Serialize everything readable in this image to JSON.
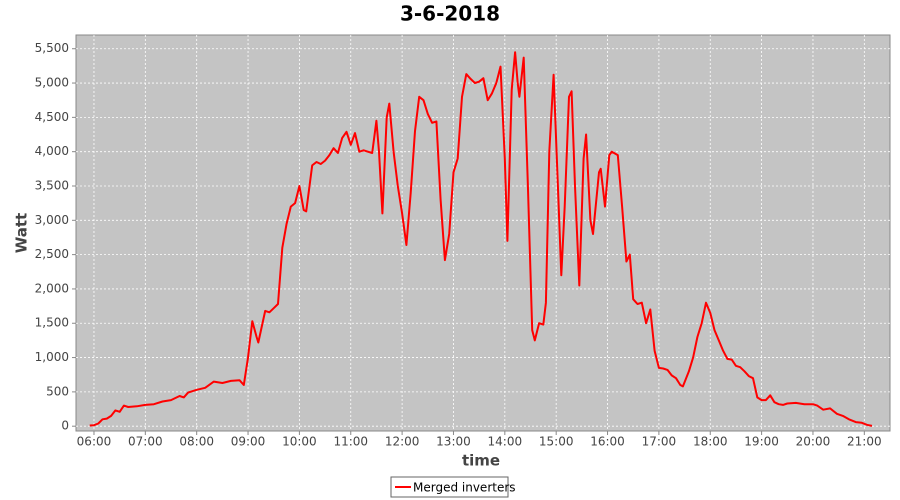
{
  "chart_data": {
    "type": "line",
    "title": "3-6-2018",
    "x_label": "time",
    "y_label": "Watt",
    "xlim": [
      "05:39",
      "21:30"
    ],
    "ylim": [
      -70,
      5700
    ],
    "xticks": [
      "06:00",
      "07:00",
      "08:00",
      "09:00",
      "10:00",
      "11:00",
      "12:00",
      "13:00",
      "14:00",
      "15:00",
      "16:00",
      "17:00",
      "18:00",
      "19:00",
      "20:00",
      "21:00"
    ],
    "yticks": [
      0,
      500,
      {
        "value": 1000,
        "label": "1,000"
      },
      {
        "value": 1500,
        "label": "1,500"
      },
      {
        "value": 2000,
        "label": "2,000"
      },
      {
        "value": 2500,
        "label": "2,500"
      },
      {
        "value": 3000,
        "label": "3,000"
      },
      {
        "value": 3500,
        "label": "3,500"
      },
      {
        "value": 4000,
        "label": "4,000"
      },
      {
        "value": 4500,
        "label": "4,500"
      },
      {
        "value": 5000,
        "label": "5,000"
      },
      {
        "value": 5500,
        "label": "5,500"
      }
    ],
    "grid": true,
    "legend": "bottom",
    "x": [
      "05:55",
      "06:00",
      "06:05",
      "06:10",
      "06:15",
      "06:20",
      "06:25",
      "06:30",
      "06:35",
      "06:40",
      "06:50",
      "07:00",
      "07:10",
      "07:20",
      "07:30",
      "07:40",
      "07:45",
      "07:50",
      "08:00",
      "08:10",
      "08:20",
      "08:30",
      "08:40",
      "08:50",
      "08:55",
      "09:00",
      "09:05",
      "09:10",
      "09:12",
      "09:20",
      "09:25",
      "09:30",
      "09:35",
      "09:40",
      "09:45",
      "09:50",
      "09:55",
      "10:00",
      "10:05",
      "10:08",
      "10:15",
      "10:20",
      "10:25",
      "10:30",
      "10:35",
      "10:40",
      "10:45",
      "10:50",
      "10:55",
      "11:00",
      "11:05",
      "11:10",
      "11:15",
      "11:20",
      "11:25",
      "11:30",
      "11:33",
      "11:37",
      "11:42",
      "11:45",
      "11:50",
      "11:55",
      "12:00",
      "12:05",
      "12:10",
      "12:15",
      "12:20",
      "12:25",
      "12:30",
      "12:35",
      "12:40",
      "12:45",
      "12:50",
      "12:55",
      "13:00",
      "13:05",
      "13:10",
      "13:15",
      "13:20",
      "13:25",
      "13:30",
      "13:35",
      "13:40",
      "13:45",
      "13:50",
      "13:55",
      "14:00",
      "14:03",
      "14:08",
      "14:12",
      "14:15",
      "14:17",
      "14:22",
      "14:27",
      "14:32",
      "14:35",
      "14:40",
      "14:45",
      "14:48",
      "14:52",
      "14:57",
      "15:02",
      "15:06",
      "15:10",
      "15:15",
      "15:18",
      "15:22",
      "15:27",
      "15:32",
      "15:35",
      "15:40",
      "15:43",
      "15:50",
      "15:52",
      "15:57",
      "16:02",
      "16:05",
      "16:12",
      "16:17",
      "16:22",
      "16:26",
      "16:30",
      "16:35",
      "16:40",
      "16:45",
      "16:50",
      "16:55",
      "17:00",
      "17:05",
      "17:10",
      "17:15",
      "17:20",
      "17:25",
      "17:28",
      "17:35",
      "17:40",
      "17:45",
      "17:50",
      "17:55",
      "18:00",
      "18:05",
      "18:10",
      "18:15",
      "18:20",
      "18:25",
      "18:30",
      "18:35",
      "18:40",
      "18:45",
      "18:50",
      "18:55",
      "19:00",
      "19:05",
      "19:10",
      "19:15",
      "19:20",
      "19:25",
      "19:30",
      "19:40",
      "19:50",
      "20:00",
      "20:05",
      "20:12",
      "20:20",
      "20:28",
      "20:35",
      "20:42",
      "20:50",
      "20:57",
      "21:03",
      "21:09"
    ],
    "series": [
      {
        "name": "Merged inverters",
        "color": "#ff0000",
        "values": [
          10,
          15,
          40,
          100,
          110,
          150,
          230,
          210,
          300,
          280,
          290,
          310,
          320,
          360,
          380,
          440,
          420,
          490,
          530,
          560,
          650,
          630,
          660,
          670,
          600,
          1000,
          1530,
          1300,
          1220,
          1680,
          1660,
          1720,
          1780,
          2600,
          2950,
          3200,
          3250,
          3500,
          3150,
          3130,
          3800,
          3850,
          3820,
          3870,
          3950,
          4050,
          3980,
          4200,
          4290,
          4100,
          4270,
          4000,
          4020,
          4000,
          3980,
          4450,
          4000,
          3100,
          4500,
          4700,
          4000,
          3500,
          3100,
          2640,
          3400,
          4300,
          4800,
          4750,
          4550,
          4420,
          4440,
          3300,
          2420,
          2800,
          3700,
          3900,
          4800,
          5130,
          5060,
          5000,
          5020,
          5070,
          4750,
          4850,
          5000,
          5240,
          3900,
          2700,
          4900,
          5450,
          5000,
          4800,
          5370,
          3500,
          1400,
          1250,
          1500,
          1480,
          1800,
          4000,
          5120,
          3500,
          2200,
          3200,
          4800,
          4880,
          3500,
          2050,
          3900,
          4250,
          3000,
          2800,
          3700,
          3750,
          3200,
          3950,
          4000,
          3950,
          3200,
          2400,
          2500,
          1850,
          1780,
          1800,
          1500,
          1700,
          1100,
          850,
          840,
          820,
          740,
          700,
          600,
          580,
          800,
          1000,
          1300,
          1500,
          1800,
          1650,
          1400,
          1250,
          1100,
          980,
          970,
          880,
          860,
          800,
          730,
          700,
          420,
          380,
          380,
          450,
          350,
          320,
          310,
          330,
          340,
          320,
          320,
          300,
          240,
          260,
          180,
          150,
          100,
          60,
          50,
          20,
          5
        ]
      }
    ]
  }
}
